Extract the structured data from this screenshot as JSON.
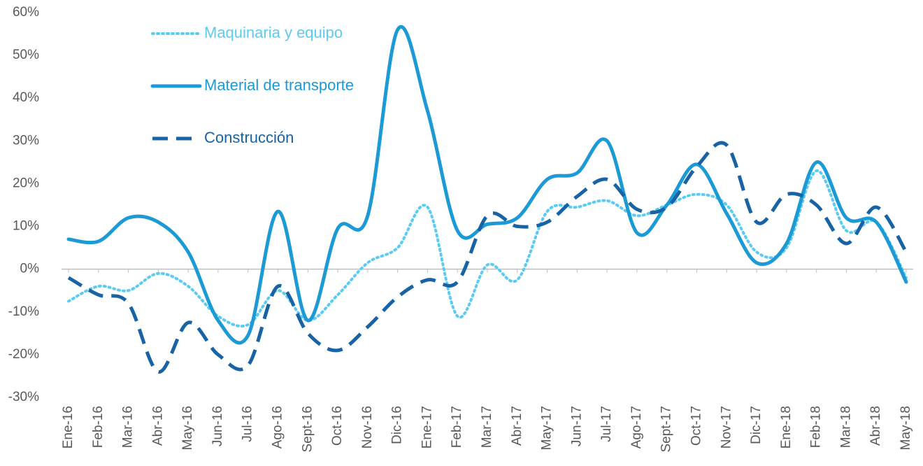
{
  "chart_data": {
    "type": "line",
    "categories": [
      "Ene-16",
      "Feb-16",
      "Mar-16",
      "Abr-16",
      "May-16",
      "Jun-16",
      "Jul-16",
      "Ago-16",
      "Sept-16",
      "Oct-16",
      "Nov-16",
      "Dic-16",
      "Ene-17",
      "Feb-17",
      "Mar-17",
      "Abr-17",
      "May-17",
      "Jun-17",
      "Jul-17",
      "Ago-17",
      "Sept-17",
      "Oct-17",
      "Nov-17",
      "Dic-17",
      "Ene-18",
      "Feb-18",
      "Mar-18",
      "Abr-18",
      "May-18"
    ],
    "series": [
      {
        "name": "Maquinaria y equipo",
        "color": "#5ccbf4",
        "style": "dotted",
        "values": [
          -7.5,
          -4,
          -5,
          -1,
          -4,
          -11,
          -13,
          -5,
          -12,
          -6,
          1.5,
          5,
          14.5,
          -11,
          1,
          -2.5,
          13.5,
          14.5,
          16,
          12.5,
          15,
          17.5,
          15,
          4,
          5,
          23,
          9,
          11,
          -2
        ]
      },
      {
        "name": "Material de transporte",
        "color": "#1b9ad6",
        "style": "solid",
        "values": [
          7,
          6.5,
          12,
          11,
          4,
          -12,
          -15.5,
          13.5,
          -12,
          9.5,
          12.5,
          56,
          37,
          9,
          10.5,
          12,
          21,
          22.5,
          30,
          8.5,
          15,
          24.5,
          13,
          1.5,
          6,
          25,
          12,
          11,
          -3
        ]
      },
      {
        "name": "Construcción",
        "color": "#1763a6",
        "style": "dashed",
        "values": [
          -2,
          -6,
          -8,
          -24,
          -12.5,
          -20,
          -22.5,
          -4,
          -15,
          -19,
          -13.5,
          -6.5,
          -2.5,
          -3,
          12.5,
          10,
          11,
          17,
          21,
          14,
          14.5,
          24,
          29,
          11,
          17.5,
          15,
          6,
          14.5,
          4
        ]
      }
    ],
    "ylim": [
      -30,
      60
    ],
    "yticks": [
      {
        "value": -30,
        "label": "-30%"
      },
      {
        "value": -20,
        "label": "-20%"
      },
      {
        "value": -10,
        "label": "-10%"
      },
      {
        "value": 0,
        "label": "0%"
      },
      {
        "value": 10,
        "label": "10%"
      },
      {
        "value": 20,
        "label": "20%"
      },
      {
        "value": 30,
        "label": "30%"
      },
      {
        "value": 40,
        "label": "40%"
      },
      {
        "value": 50,
        "label": "50%"
      },
      {
        "value": 60,
        "label": "60%"
      }
    ],
    "legend": "upper-left"
  }
}
